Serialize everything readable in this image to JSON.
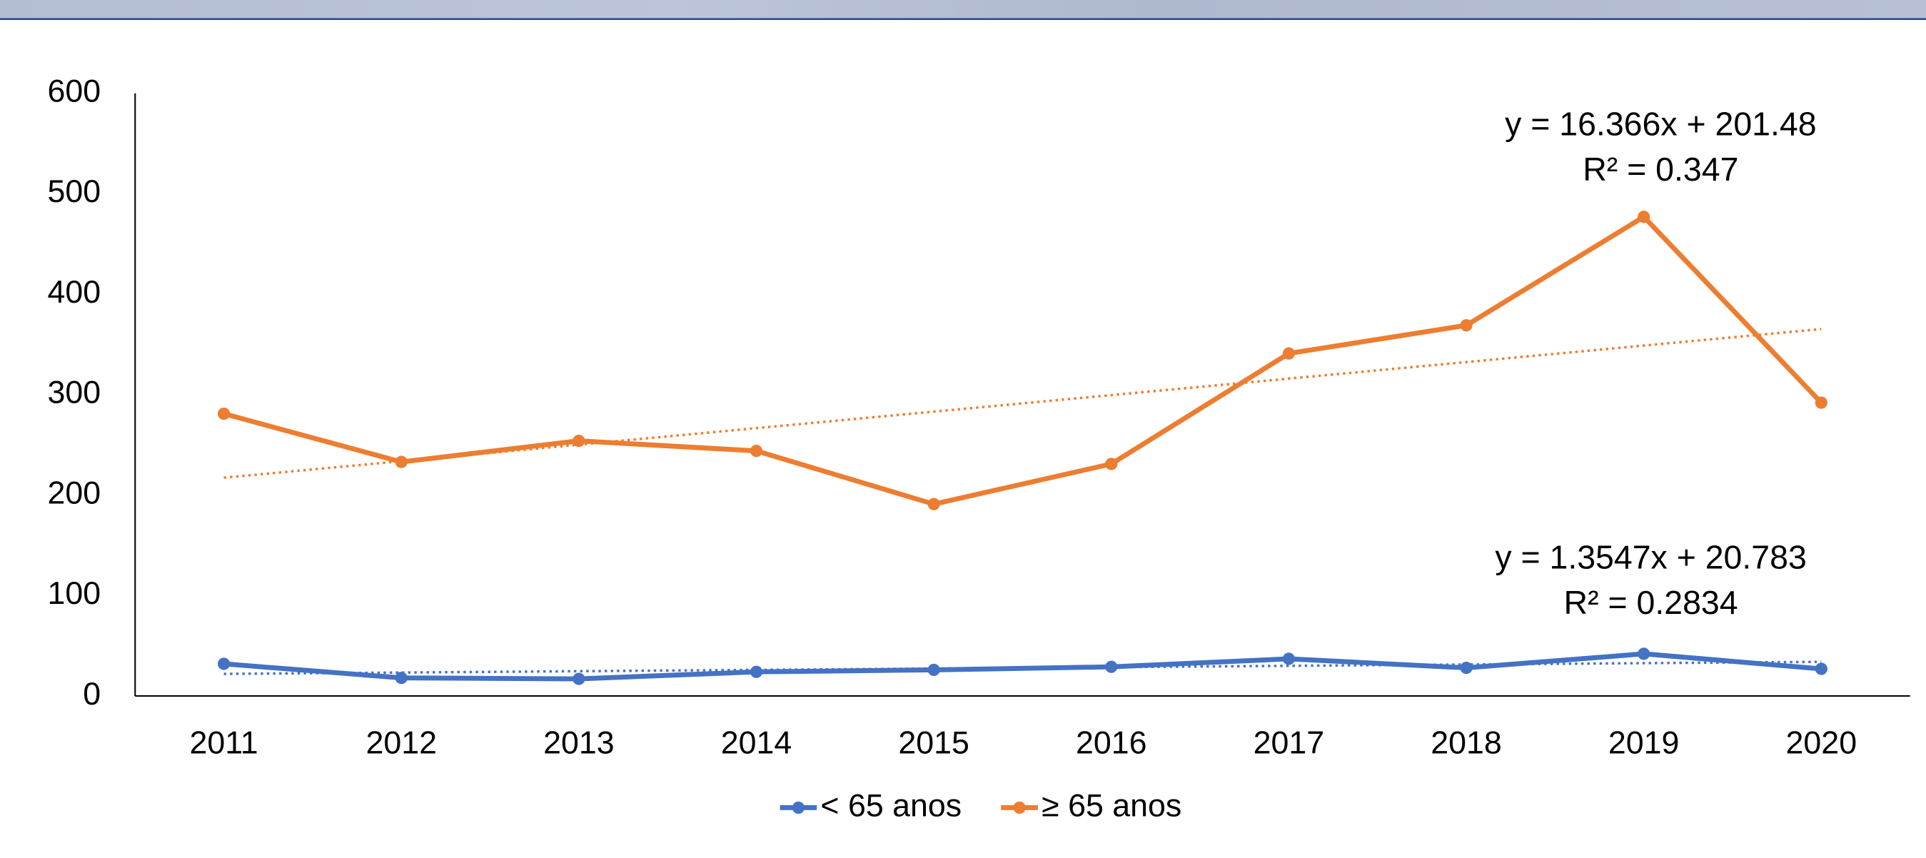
{
  "chart_data": {
    "type": "line",
    "categories": [
      "2011",
      "2012",
      "2013",
      "2014",
      "2015",
      "2016",
      "2017",
      "2018",
      "2019",
      "2020"
    ],
    "series": [
      {
        "name": "< 65 anos",
        "color": "#4472c4",
        "values": [
          32,
          18,
          17,
          24,
          26,
          29,
          37,
          28,
          42,
          27
        ]
      },
      {
        "name": "≥ 65 anos",
        "color": "#ed7d31",
        "values": [
          281,
          233,
          254,
          244,
          191,
          231,
          341,
          369,
          477,
          292
        ]
      }
    ],
    "ylim": [
      0,
      600
    ],
    "yticks": [
      0,
      100,
      200,
      300,
      400,
      500,
      600
    ],
    "trendline": "linear",
    "annotations": [
      {
        "series": 0,
        "lines": [
          "y = 1.3547x + 20.783",
          "R² = 0.2834"
        ]
      },
      {
        "series": 1,
        "lines": [
          "y = 16.366x + 201.48",
          "R² = 0.347"
        ]
      }
    ],
    "legend": "bottom"
  }
}
